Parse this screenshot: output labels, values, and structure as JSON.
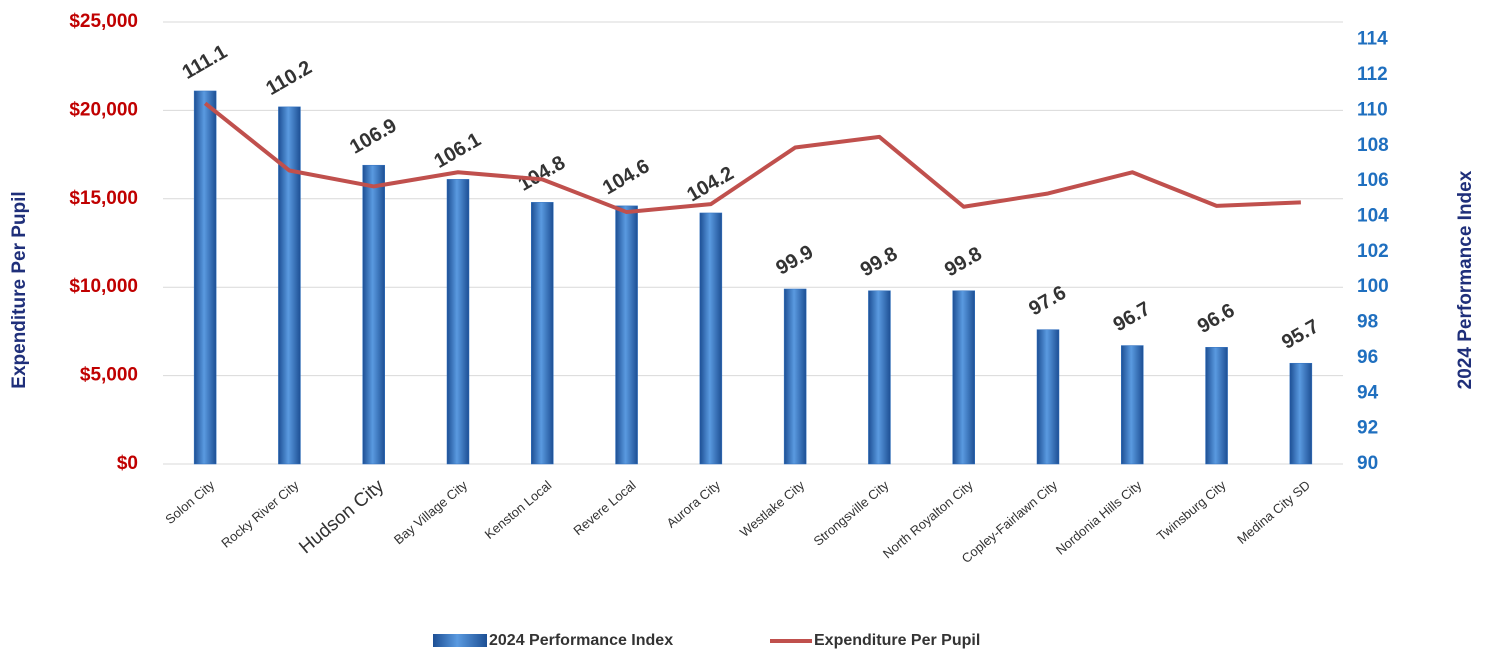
{
  "chart_data": {
    "type": "bar",
    "categories": [
      "Solon City",
      "Rocky River City",
      "Hudson City",
      "Bay Village City",
      "Kenston Local",
      "Revere Local",
      "Aurora City",
      "Westlake City",
      "Strongsville City",
      "North Royalton City",
      "Copley-Fairlawn City",
      "Nordonia Hills City",
      "Twinsburg City",
      "Medina City SD"
    ],
    "category_label_colors": [
      "#333333",
      "#333333",
      "#3a5bb5",
      "#333333",
      "#333333",
      "#333333",
      "#333333",
      "#333333",
      "#333333",
      "#333333",
      "#333333",
      "#333333",
      "#333333",
      "#333333"
    ],
    "series": [
      {
        "name": "2024 Performance Index",
        "type": "bar",
        "axis": "y2",
        "color": "#2e6fbf",
        "values": [
          111.1,
          110.2,
          106.9,
          106.1,
          104.8,
          104.6,
          104.2,
          99.9,
          99.8,
          99.8,
          97.6,
          96.7,
          96.6,
          95.7
        ]
      },
      {
        "name": "Expenditure Per Pupil",
        "type": "line",
        "axis": "y",
        "color": "#c0504d",
        "values": [
          20400,
          16600,
          15700,
          16500,
          16100,
          14250,
          14700,
          17900,
          18500,
          14550,
          15300,
          16500,
          14600,
          14800
        ]
      }
    ],
    "ylabel": "Expenditure Per Pupil",
    "y2label": "2024 Performance Index",
    "ylim": [
      0,
      25000
    ],
    "yticks": [
      {
        "value": 0,
        "label": "$0"
      },
      {
        "value": 5000,
        "label": "$5,000"
      },
      {
        "value": 10000,
        "label": "$10,000"
      },
      {
        "value": 15000,
        "label": "$15,000"
      },
      {
        "value": 20000,
        "label": "$20,000"
      },
      {
        "value": 25000,
        "label": "$25,000"
      }
    ],
    "y2lim": [
      90,
      115
    ],
    "y2ticks": [
      90,
      92,
      94,
      96,
      98,
      100,
      102,
      104,
      106,
      108,
      110,
      112,
      114
    ],
    "grid": true,
    "legend": "bottom"
  }
}
